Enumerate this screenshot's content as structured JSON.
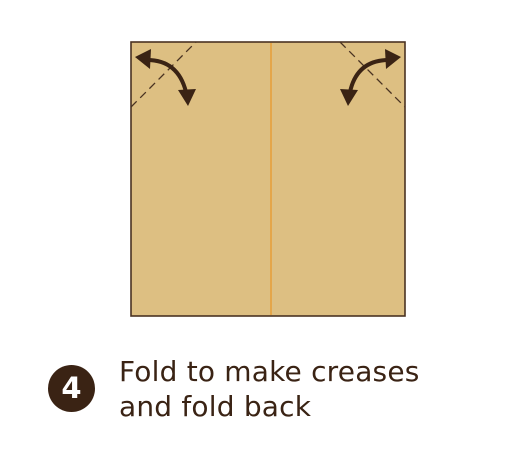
{
  "step": {
    "number": "4",
    "text_line1": "Fold to make creases",
    "text_line2": "and fold back"
  },
  "colors": {
    "paper": "#ddbf82",
    "paper_edge": "#4a3322",
    "center_crease": "#e6a03c",
    "fold_lines": "#4a3322",
    "arrows": "#3a2314",
    "badge": "#3a2314",
    "text": "#3a2314"
  }
}
